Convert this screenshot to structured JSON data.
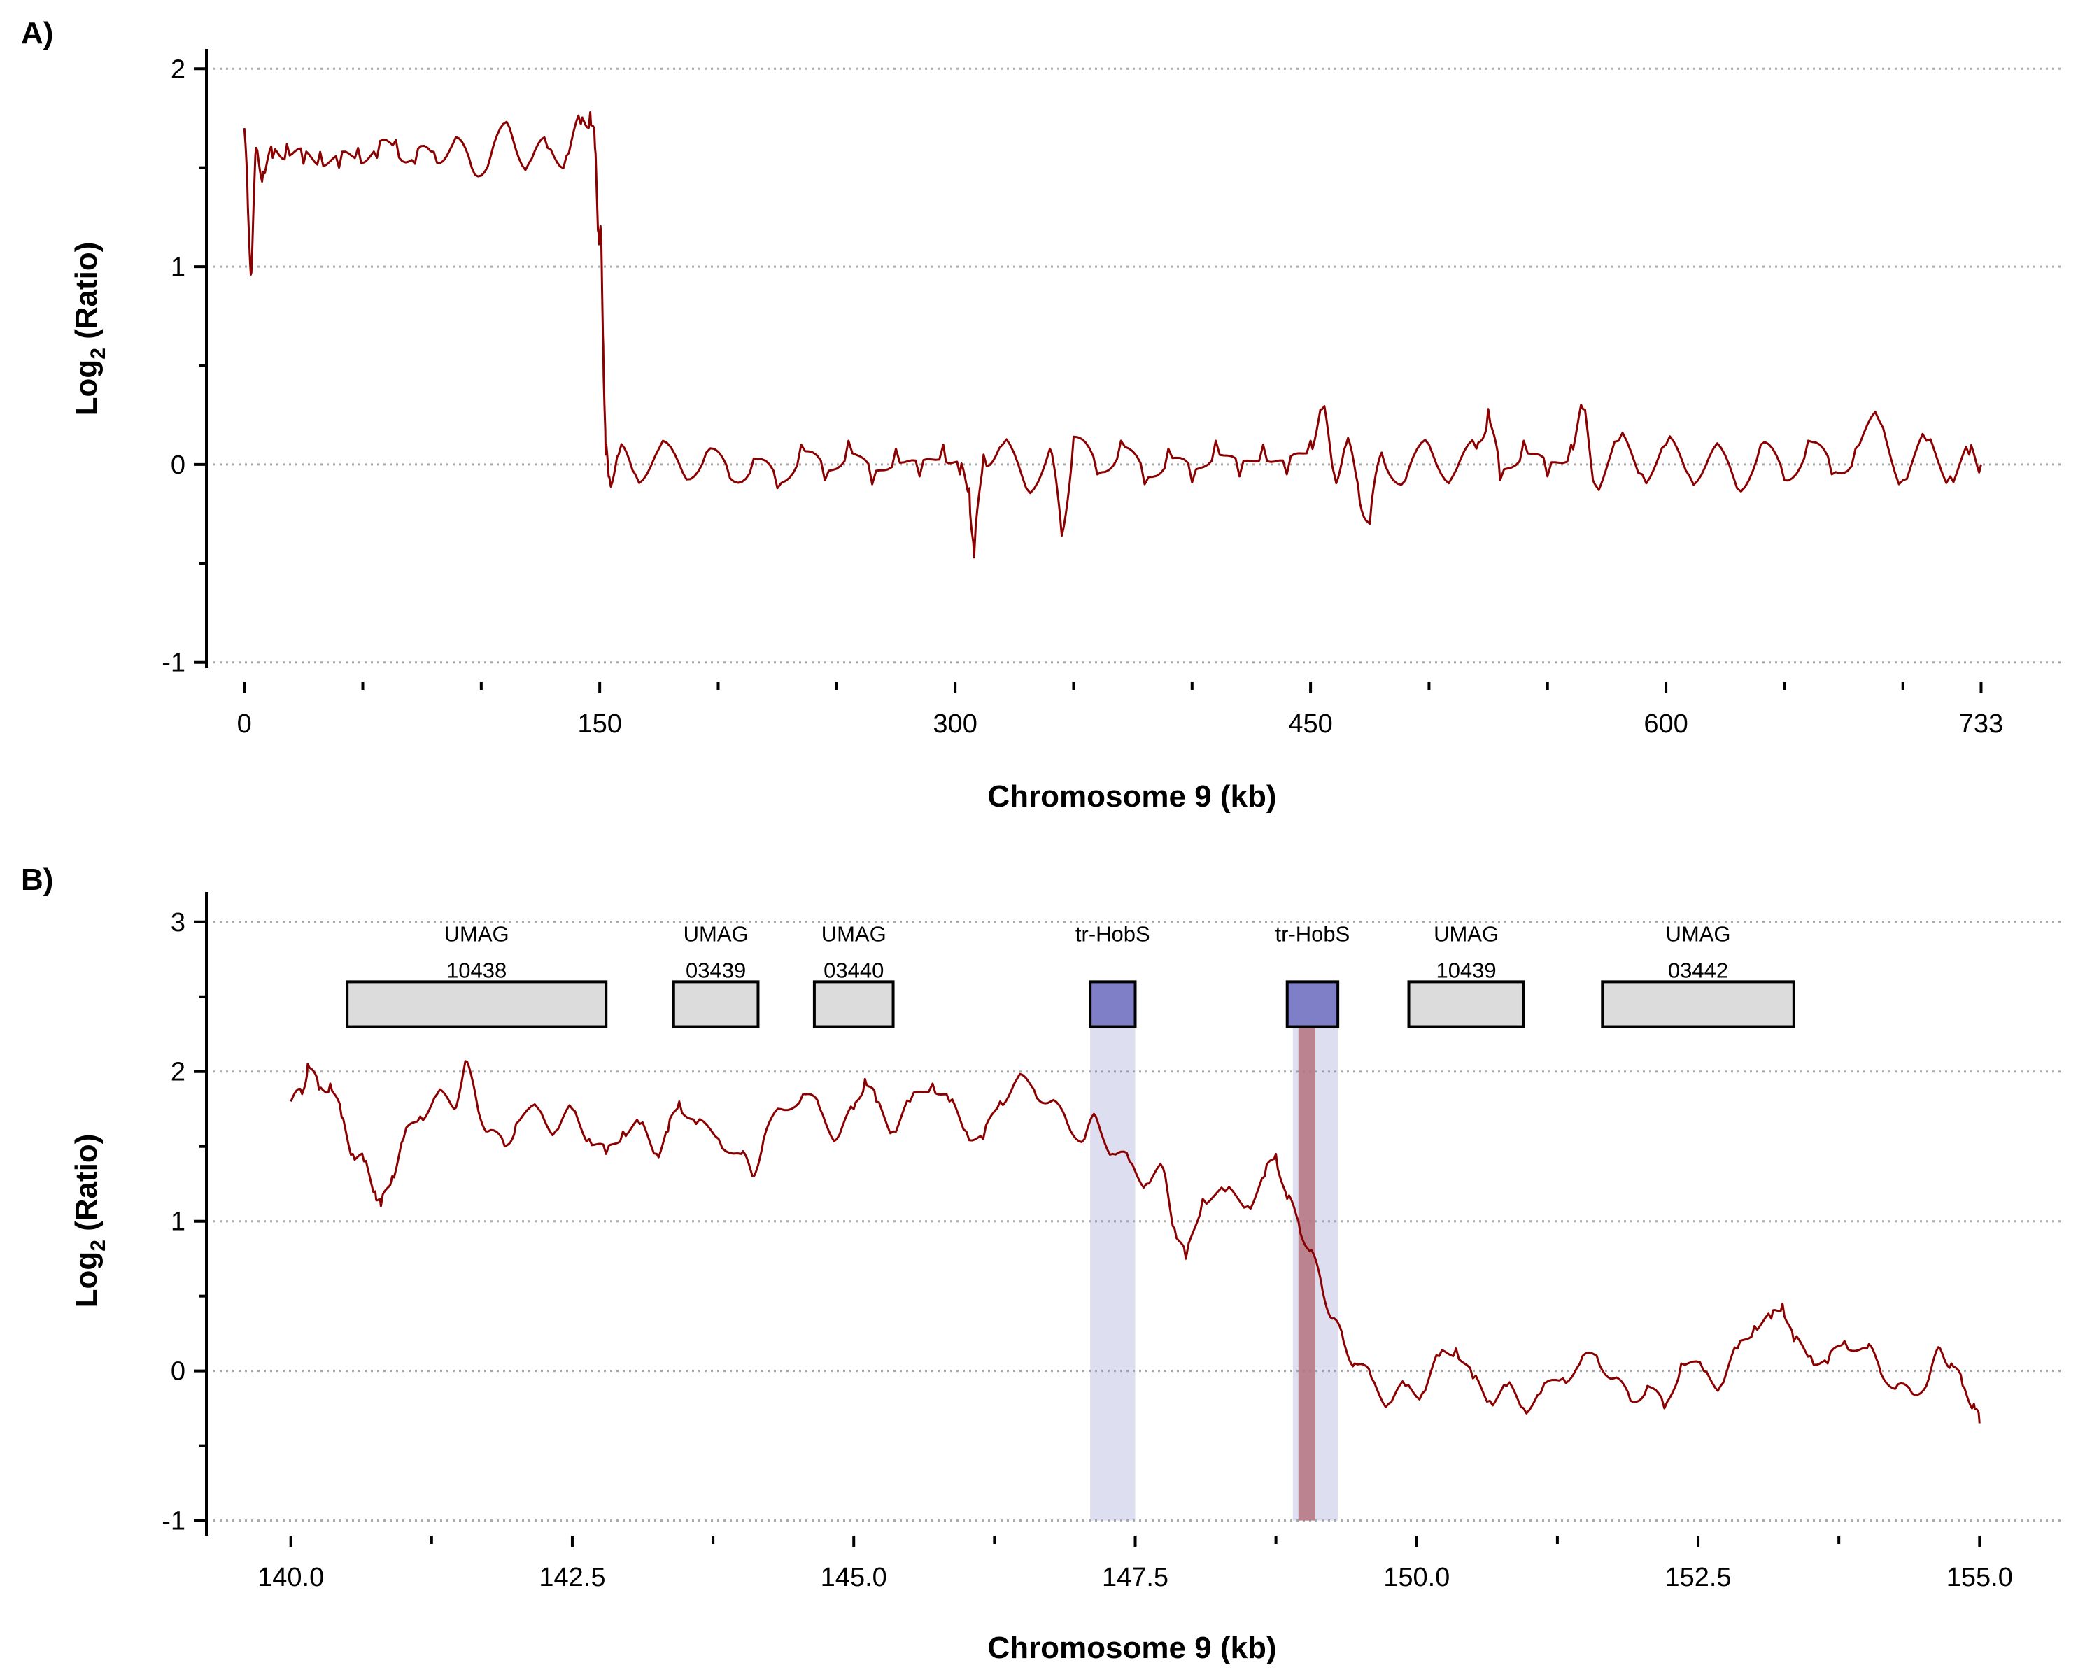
{
  "chart_data": [
    {
      "panel": "A)",
      "type": "line",
      "xlabel": "Chromosome 9 (kb)",
      "ylabel": {
        "main": "Log",
        "sub": "2",
        "rest": " (Ratio)"
      },
      "xlim": [
        -16,
        768
      ],
      "ylim": [
        -1.1,
        2.1
      ],
      "xticks": [
        0,
        150,
        300,
        450,
        600,
        733
      ],
      "xtick_labels": [
        "0",
        "150",
        "300",
        "450",
        "600",
        "733"
      ],
      "xminor": [
        50,
        100,
        200,
        250,
        350,
        400,
        500,
        550,
        650,
        700
      ],
      "yticks": [
        -1,
        0,
        1,
        2
      ],
      "ytick_labels": [
        "-1",
        "0",
        "1",
        "2"
      ],
      "yminor": [
        -0.5,
        0.5,
        1.5
      ],
      "grid": "horizontal dotted",
      "series": [
        {
          "color": "#8b0000",
          "points": [
            [
              0,
              1.7
            ],
            [
              1.5,
              1.3
            ],
            [
              3,
              0.97
            ],
            [
              5,
              1.6
            ],
            [
              8,
              1.48
            ],
            [
              12,
              1.55
            ],
            [
              18,
              1.62
            ],
            [
              25,
              1.52
            ],
            [
              32,
              1.58
            ],
            [
              40,
              1.5
            ],
            [
              48,
              1.6
            ],
            [
              56,
              1.55
            ],
            [
              64,
              1.64
            ],
            [
              72,
              1.52
            ],
            [
              80,
              1.58
            ],
            [
              88,
              1.62
            ],
            [
              96,
              1.5
            ],
            [
              104,
              1.56
            ],
            [
              112,
              1.7
            ],
            [
              120,
              1.52
            ],
            [
              128,
              1.6
            ],
            [
              136,
              1.56
            ],
            [
              142,
              1.72
            ],
            [
              146,
              1.78
            ],
            [
              148,
              1.6
            ],
            [
              149.5,
              1.17
            ],
            [
              150.5,
              1.15
            ],
            [
              151.5,
              0.6
            ],
            [
              152.5,
              0.05
            ],
            [
              154,
              -0.06
            ],
            [
              158,
              0.05
            ],
            [
              165,
              -0.05
            ],
            [
              175,
              0.08
            ],
            [
              185,
              -0.04
            ],
            [
              195,
              0.06
            ],
            [
              205,
              -0.07
            ],
            [
              215,
              0.03
            ],
            [
              225,
              -0.12
            ],
            [
              235,
              0.1
            ],
            [
              245,
              -0.08
            ],
            [
              255,
              0.12
            ],
            [
              265,
              -0.1
            ],
            [
              275,
              0.08
            ],
            [
              285,
              -0.06
            ],
            [
              295,
              0.1
            ],
            [
              302,
              -0.05
            ],
            [
              306,
              -0.12
            ],
            [
              308,
              -0.47
            ],
            [
              312,
              0.05
            ],
            [
              320,
              0.1
            ],
            [
              330,
              -0.12
            ],
            [
              340,
              0.08
            ],
            [
              345,
              -0.36
            ],
            [
              350,
              0.14
            ],
            [
              360,
              -0.05
            ],
            [
              370,
              0.12
            ],
            [
              380,
              -0.1
            ],
            [
              390,
              0.08
            ],
            [
              400,
              -0.09
            ],
            [
              410,
              0.12
            ],
            [
              420,
              -0.06
            ],
            [
              430,
              0.1
            ],
            [
              440,
              -0.05
            ],
            [
              450,
              0.12
            ],
            [
              455,
              0.28
            ],
            [
              460,
              -0.05
            ],
            [
              465,
              0.1
            ],
            [
              470,
              -0.1
            ],
            [
              475,
              -0.3
            ],
            [
              480,
              0.06
            ],
            [
              490,
              -0.08
            ],
            [
              500,
              0.1
            ],
            [
              510,
              -0.06
            ],
            [
              520,
              0.08
            ],
            [
              525,
              0.28
            ],
            [
              530,
              -0.08
            ],
            [
              540,
              0.12
            ],
            [
              550,
              -0.06
            ],
            [
              560,
              0.1
            ],
            [
              565,
              0.28
            ],
            [
              570,
              -0.1
            ],
            [
              580,
              0.12
            ],
            [
              590,
              -0.05
            ],
            [
              600,
              0.1
            ],
            [
              610,
              -0.06
            ],
            [
              620,
              0.08
            ],
            [
              630,
              -0.12
            ],
            [
              640,
              0.1
            ],
            [
              650,
              -0.08
            ],
            [
              660,
              0.12
            ],
            [
              670,
              -0.05
            ],
            [
              680,
              0.08
            ],
            [
              690,
              0.22
            ],
            [
              700,
              -0.08
            ],
            [
              710,
              0.12
            ],
            [
              720,
              -0.06
            ],
            [
              728,
              0.05
            ],
            [
              733,
              0.0
            ]
          ]
        }
      ]
    },
    {
      "panel": "B)",
      "type": "line",
      "xlabel": "Chromosome 9 (kb)",
      "ylabel": {
        "main": "Log",
        "sub": "2",
        "rest": " (Ratio)"
      },
      "xlim": [
        139.25,
        155.75
      ],
      "ylim": [
        -1.1,
        3.2
      ],
      "xticks": [
        140.0,
        142.5,
        145.0,
        147.5,
        150.0,
        152.5,
        155.0
      ],
      "xtick_labels": [
        "140.0",
        "142.5",
        "145.0",
        "147.5",
        "150.0",
        "152.5",
        "155.0"
      ],
      "xminor": [
        141.25,
        143.75,
        146.25,
        148.75,
        151.25,
        153.75
      ],
      "yticks": [
        -1,
        0,
        1,
        2,
        3
      ],
      "ytick_labels": [
        "-1",
        "0",
        "1",
        "2",
        "3"
      ],
      "yminor": [
        -0.5,
        0.5,
        1.5,
        2.5
      ],
      "grid": "horizontal dotted",
      "highlights": [
        {
          "x0": 147.1,
          "x1": 147.5,
          "color": "#8a87cc",
          "opacity": 0.28
        },
        {
          "x0": 148.9,
          "x1": 149.3,
          "color": "#8a87cc",
          "opacity": 0.28
        },
        {
          "x0": 148.95,
          "x1": 149.1,
          "color": "#b5737e",
          "opacity": 0.85
        }
      ],
      "genes": [
        {
          "line1": "UMAG",
          "line2": "10438",
          "x0": 140.5,
          "x1": 142.8,
          "fill": "#dcdcdc"
        },
        {
          "line1": "UMAG",
          "line2": "03439",
          "x0": 143.4,
          "x1": 144.15,
          "fill": "#dcdcdc"
        },
        {
          "line1": "UMAG",
          "line2": "03440",
          "x0": 144.65,
          "x1": 145.35,
          "fill": "#dcdcdc"
        },
        {
          "line1": "tr-HobS",
          "line2": "",
          "x0": 147.1,
          "x1": 147.5,
          "fill": "#7f7fc8"
        },
        {
          "line1": "tr-HobS",
          "line2": "",
          "x0": 148.85,
          "x1": 149.3,
          "fill": "#7f7fc8"
        },
        {
          "line1": "UMAG",
          "line2": "10439",
          "x0": 149.93,
          "x1": 150.95,
          "fill": "#dcdcdc"
        },
        {
          "line1": "UMAG",
          "line2": "03442",
          "x0": 151.65,
          "x1": 153.35,
          "fill": "#dcdcdc"
        }
      ],
      "gene_box_y": [
        2.3,
        2.6
      ],
      "series": [
        {
          "color": "#8b0000",
          "points": [
            [
              140.0,
              1.8
            ],
            [
              140.1,
              1.85
            ],
            [
              140.15,
              2.05
            ],
            [
              140.25,
              1.88
            ],
            [
              140.35,
              1.92
            ],
            [
              140.45,
              1.7
            ],
            [
              140.55,
              1.45
            ],
            [
              140.65,
              1.4
            ],
            [
              140.75,
              1.2
            ],
            [
              140.8,
              1.1
            ],
            [
              140.9,
              1.3
            ],
            [
              141.0,
              1.55
            ],
            [
              141.15,
              1.7
            ],
            [
              141.3,
              1.85
            ],
            [
              141.45,
              1.75
            ],
            [
              141.55,
              2.07
            ],
            [
              141.65,
              1.8
            ],
            [
              141.75,
              1.6
            ],
            [
              141.9,
              1.5
            ],
            [
              142.0,
              1.65
            ],
            [
              142.2,
              1.75
            ],
            [
              142.35,
              1.6
            ],
            [
              142.5,
              1.75
            ],
            [
              142.65,
              1.55
            ],
            [
              142.8,
              1.45
            ],
            [
              142.95,
              1.6
            ],
            [
              143.1,
              1.65
            ],
            [
              143.25,
              1.45
            ],
            [
              143.35,
              1.6
            ],
            [
              143.45,
              1.8
            ],
            [
              143.6,
              1.65
            ],
            [
              143.8,
              1.55
            ],
            [
              144.0,
              1.45
            ],
            [
              144.1,
              1.3
            ],
            [
              144.2,
              1.55
            ],
            [
              144.35,
              1.75
            ],
            [
              144.55,
              1.85
            ],
            [
              144.7,
              1.75
            ],
            [
              144.85,
              1.55
            ],
            [
              145.0,
              1.75
            ],
            [
              145.1,
              1.95
            ],
            [
              145.2,
              1.8
            ],
            [
              145.35,
              1.6
            ],
            [
              145.5,
              1.8
            ],
            [
              145.7,
              1.92
            ],
            [
              145.85,
              1.8
            ],
            [
              146.0,
              1.6
            ],
            [
              146.15,
              1.55
            ],
            [
              146.3,
              1.8
            ],
            [
              146.45,
              1.95
            ],
            [
              146.6,
              1.88
            ],
            [
              146.75,
              1.8
            ],
            [
              146.9,
              1.65
            ],
            [
              147.05,
              1.55
            ],
            [
              147.15,
              1.7
            ],
            [
              147.3,
              1.45
            ],
            [
              147.45,
              1.4
            ],
            [
              147.6,
              1.25
            ],
            [
              147.75,
              1.35
            ],
            [
              147.85,
              0.95
            ],
            [
              147.95,
              0.75
            ],
            [
              148.1,
              1.15
            ],
            [
              148.3,
              1.2
            ],
            [
              148.5,
              1.1
            ],
            [
              148.65,
              1.3
            ],
            [
              148.75,
              1.45
            ],
            [
              148.85,
              1.15
            ],
            [
              148.95,
              1.0
            ],
            [
              149.05,
              0.8
            ],
            [
              149.15,
              0.6
            ],
            [
              149.25,
              0.35
            ],
            [
              149.35,
              0.2
            ],
            [
              149.45,
              0.05
            ],
            [
              149.6,
              -0.05
            ],
            [
              149.75,
              -0.22
            ],
            [
              149.9,
              -0.1
            ],
            [
              150.05,
              -0.15
            ],
            [
              150.2,
              0.1
            ],
            [
              150.35,
              0.15
            ],
            [
              150.5,
              -0.05
            ],
            [
              150.65,
              -0.2
            ],
            [
              150.8,
              -0.1
            ],
            [
              150.95,
              -0.25
            ],
            [
              151.1,
              -0.15
            ],
            [
              151.3,
              -0.05
            ],
            [
              151.45,
              0.05
            ],
            [
              151.6,
              0.1
            ],
            [
              151.75,
              -0.05
            ],
            [
              151.9,
              -0.2
            ],
            [
              152.05,
              -0.1
            ],
            [
              152.2,
              -0.25
            ],
            [
              152.35,
              0.05
            ],
            [
              152.55,
              0.0
            ],
            [
              152.7,
              -0.1
            ],
            [
              152.85,
              0.15
            ],
            [
              153.0,
              0.3
            ],
            [
              153.15,
              0.35
            ],
            [
              153.25,
              0.45
            ],
            [
              153.35,
              0.2
            ],
            [
              153.5,
              0.1
            ],
            [
              153.65,
              0.05
            ],
            [
              153.8,
              0.2
            ],
            [
              154.0,
              0.15
            ],
            [
              154.1,
              0.05
            ],
            [
              154.25,
              -0.12
            ],
            [
              154.4,
              -0.15
            ],
            [
              154.55,
              -0.05
            ],
            [
              154.65,
              0.15
            ],
            [
              154.75,
              0.05
            ],
            [
              154.85,
              -0.1
            ],
            [
              154.95,
              -0.22
            ],
            [
              155.0,
              -0.35
            ]
          ]
        }
      ]
    }
  ]
}
